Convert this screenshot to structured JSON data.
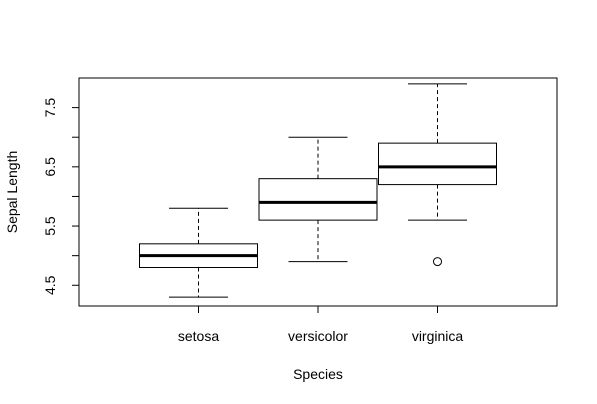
{
  "chart_data": {
    "type": "boxplot",
    "xlabel": "Species",
    "ylabel": "Sepal Length",
    "ylim": [
      4.15,
      8.0
    ],
    "yticks": [
      4.5,
      5.0,
      5.5,
      6.0,
      6.5,
      7.0,
      7.5
    ],
    "ytick_labels": [
      "4.5",
      "",
      "5.5",
      "",
      "6.5",
      "",
      "7.5"
    ],
    "categories": [
      "setosa",
      "versicolor",
      "virginica"
    ],
    "boxes": [
      {
        "label": "setosa",
        "whisker_low": 4.3,
        "q1": 4.8,
        "median": 5.0,
        "q3": 5.2,
        "whisker_high": 5.8,
        "outliers": []
      },
      {
        "label": "versicolor",
        "whisker_low": 4.9,
        "q1": 5.6,
        "median": 5.9,
        "q3": 6.3,
        "whisker_high": 7.0,
        "outliers": []
      },
      {
        "label": "virginica",
        "whisker_low": 5.6,
        "q1": 6.2,
        "median": 6.5,
        "q3": 6.9,
        "whisker_high": 7.9,
        "outliers": [
          4.9
        ]
      }
    ],
    "colors": {
      "box_fill": "#ffffff",
      "line": "#000000"
    }
  }
}
